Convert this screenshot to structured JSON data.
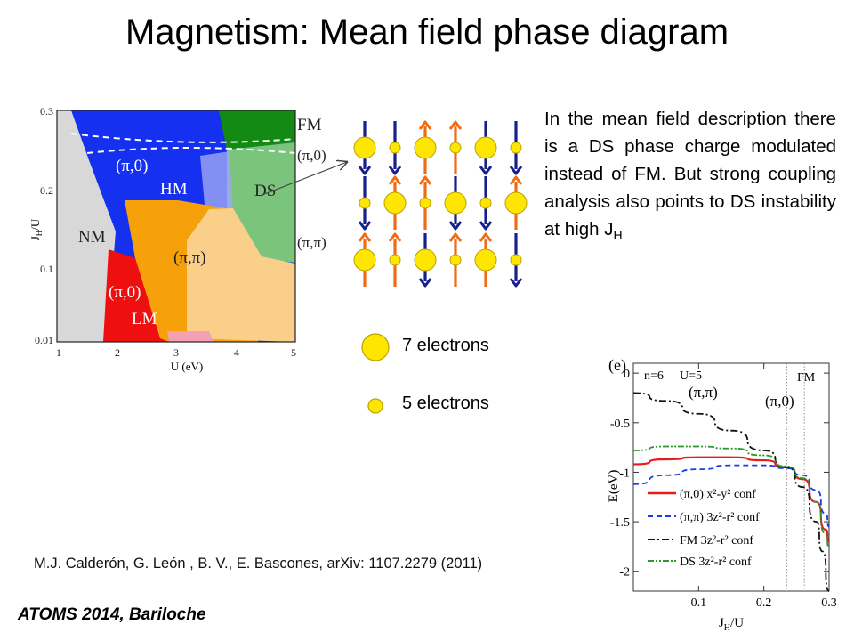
{
  "slide": {
    "title": "Magnetism: Mean field phase diagram",
    "description_main": "In the mean field description there is a DS phase charge modulated instead of FM. But strong coupling analysis also points to DS instability at high J",
    "description_sub": "H",
    "legend_large": "7 electrons",
    "legend_small": "5 electrons",
    "citation": "M.J. Calderón, G. León , B. V., E. Bascones, arXiv: 1107.2279 (2011)",
    "footer": "ATOMS 2014, Bariloche"
  },
  "phase_diagram": {
    "x_ticks": [
      "1",
      "2",
      "3",
      "4",
      "5"
    ],
    "y_ticks": [
      "0.3",
      "0.2",
      "0.1",
      "0.01"
    ],
    "xlabel": "U (eV)",
    "ylabel": "J",
    "ylabel_sub": "H",
    "ylabel_tail": "/U",
    "regions": {
      "NM": "NM",
      "HM": "HM",
      "LM": "LM",
      "DS": "DS",
      "FM": "FM",
      "pi0_top": "(π,0)",
      "pi0_right": "(π,0)",
      "pipi_center": "(π,π)",
      "pipi_right": "(π,π)",
      "pi0_low": "(π,0)"
    },
    "colors": {
      "NM": "#d8d8d8",
      "HM": "#1530ee",
      "LM": "#ee1010",
      "FM": "#138a13",
      "DS": "#7bc47b",
      "pipi": "#f7a10a",
      "pipi_light": "#f9cf8a"
    }
  },
  "energy_chart": {
    "chart_data": {
      "type": "line",
      "xlabel": "J",
      "xlabel_sub": "H",
      "xlabel_tail": "/U",
      "ylabel": "E(eV)",
      "corner_label": "(e)",
      "annotations": [
        "n=6",
        "U=5",
        "FM",
        "(π,π)",
        "(π,0)"
      ],
      "xlim": [
        0.0,
        0.3
      ],
      "ylim": [
        -2.2,
        0.1
      ],
      "x_ticks": [
        "0.1",
        "0.2",
        "0.3"
      ],
      "y_ticks": [
        "0",
        "-0.5",
        "-1",
        "-1.5",
        "-2"
      ],
      "vlines": [
        0.235,
        0.262
      ],
      "series": [
        {
          "name": "(π,0) x²-y² conf",
          "color": "#e81a1a",
          "dash": "solid",
          "x": [
            0.0,
            0.05,
            0.1,
            0.15,
            0.2,
            0.235,
            0.26,
            0.28,
            0.295,
            0.3
          ],
          "y": [
            -0.92,
            -0.87,
            -0.85,
            -0.85,
            -0.88,
            -0.95,
            -1.07,
            -1.3,
            -1.58,
            -1.7
          ]
        },
        {
          "name": "(π,π) 3z²-r² conf",
          "color": "#1a3ce0",
          "dash": "6,4",
          "x": [
            0.0,
            0.05,
            0.1,
            0.15,
            0.2,
            0.235,
            0.26,
            0.28,
            0.295,
            0.3
          ],
          "y": [
            -1.12,
            -1.03,
            -0.97,
            -0.93,
            -0.93,
            -0.96,
            -1.03,
            -1.18,
            -1.42,
            -1.55
          ]
        },
        {
          "name": "FM 3z²-r² conf",
          "color": "#111111",
          "dash": "8,3,2,3",
          "x": [
            0.0,
            0.05,
            0.1,
            0.15,
            0.2,
            0.235,
            0.26,
            0.28,
            0.29,
            0.3
          ],
          "y": [
            -0.2,
            -0.28,
            -0.41,
            -0.58,
            -0.78,
            -0.95,
            -1.15,
            -1.5,
            -1.8,
            -2.2
          ]
        },
        {
          "name": "DS 3z²-r² conf",
          "color": "#2a9a2a",
          "dash": "7,2,2,2,2,2",
          "x": [
            0.0,
            0.05,
            0.1,
            0.15,
            0.2,
            0.235,
            0.26,
            0.28,
            0.295,
            0.3
          ],
          "y": [
            -0.78,
            -0.74,
            -0.74,
            -0.76,
            -0.83,
            -0.94,
            -1.06,
            -1.3,
            -1.62,
            -1.76
          ]
        }
      ]
    }
  }
}
